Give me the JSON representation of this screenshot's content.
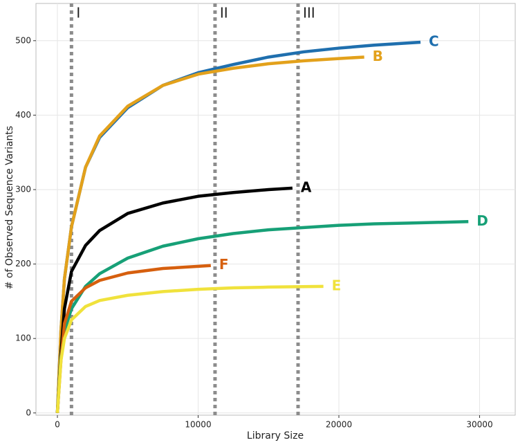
{
  "chart_data": {
    "type": "line",
    "x_label": "Library Size",
    "y_label": "# of Observed Sequence Variants",
    "xlim": [
      -1523,
      32530
    ],
    "ylim": [
      -3,
      550
    ],
    "xticks": [
      0,
      10000,
      20000,
      30000
    ],
    "yticks": [
      0,
      100,
      200,
      300,
      400,
      500
    ],
    "grid": true,
    "vlines": [
      {
        "value": 1000,
        "label": "I"
      },
      {
        "value": 11200,
        "label": "II"
      },
      {
        "value": 17100,
        "label": "III"
      }
    ],
    "vline_color": "#8c8c8c",
    "series": [
      {
        "name": "C",
        "color": "#1f6fae",
        "x": [
          0,
          250,
          500,
          1000,
          2000,
          3000,
          5000,
          7500,
          10000,
          12500,
          15000,
          17500,
          20000,
          22500,
          25800
        ],
        "values": [
          0,
          110,
          180,
          250,
          330,
          370,
          410,
          440,
          457,
          468,
          478,
          485,
          490,
          494,
          498
        ]
      },
      {
        "name": "B",
        "color": "#e3a11b",
        "x": [
          0,
          250,
          500,
          1000,
          2000,
          3000,
          5000,
          7500,
          10000,
          12500,
          15000,
          17500,
          20000,
          21800
        ],
        "values": [
          0,
          110,
          180,
          250,
          330,
          372,
          412,
          440,
          455,
          463,
          469,
          473,
          476,
          478
        ]
      },
      {
        "name": "A",
        "color": "#000000",
        "x": [
          0,
          250,
          500,
          1000,
          2000,
          3000,
          5000,
          7500,
          10000,
          12500,
          15000,
          16700
        ],
        "values": [
          0,
          80,
          140,
          190,
          225,
          245,
          268,
          282,
          291,
          296,
          300,
          302
        ]
      },
      {
        "name": "D",
        "color": "#17a077",
        "x": [
          0,
          250,
          500,
          1000,
          2000,
          3000,
          5000,
          7500,
          10000,
          12500,
          15000,
          17500,
          20000,
          22500,
          25000,
          29200
        ],
        "values": [
          0,
          75,
          110,
          140,
          170,
          187,
          208,
          224,
          234,
          241,
          246,
          249,
          252,
          254,
          255,
          257
        ]
      },
      {
        "name": "F",
        "color": "#d65f0e",
        "x": [
          0,
          250,
          500,
          1000,
          2000,
          3000,
          5000,
          7500,
          10900
        ],
        "values": [
          0,
          70,
          120,
          150,
          168,
          178,
          188,
          194,
          198
        ]
      },
      {
        "name": "E",
        "color": "#f0e23c",
        "x": [
          0,
          250,
          500,
          1000,
          2000,
          3000,
          5000,
          7500,
          10000,
          12500,
          15000,
          18900
        ],
        "values": [
          0,
          70,
          100,
          125,
          143,
          151,
          158,
          163,
          166,
          168,
          169,
          170
        ]
      }
    ]
  }
}
